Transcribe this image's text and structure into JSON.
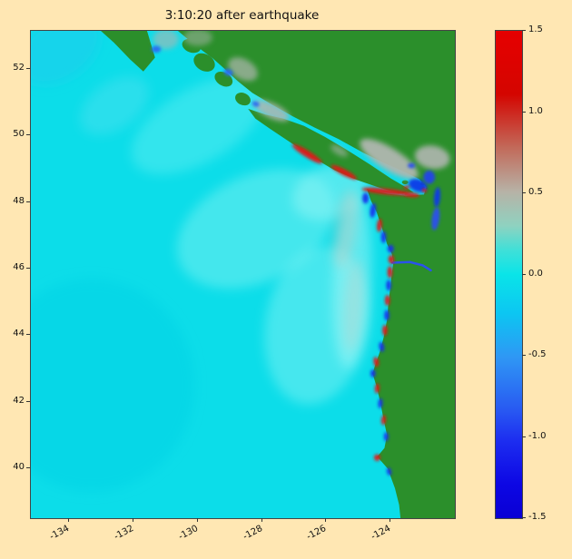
{
  "title": "3:10:20 after earthquake",
  "figure": {
    "background": "#ffe7b3"
  },
  "chart_data": {
    "type": "heatmap",
    "title": "3:10:20 after earthquake",
    "xlabel": "",
    "ylabel": "",
    "xlim": [
      -135.2,
      -122.0
    ],
    "ylim": [
      38.5,
      53.15
    ],
    "grid": false,
    "x_tick_values": [
      -134,
      -132,
      -130,
      -128,
      -126,
      -124
    ],
    "x_tick_labels": [
      "-134",
      "-132",
      "-130",
      "-128",
      "-126",
      "-124"
    ],
    "y_tick_values": [
      40,
      42,
      44,
      46,
      48,
      50,
      52
    ],
    "y_tick_labels": [
      "40",
      "42",
      "44",
      "46",
      "48",
      "50",
      "52"
    ],
    "colors": {
      "red": "#e01616",
      "blue": "#1432ec",
      "land": "#2b8f2b",
      "ocean": "#0cdde9",
      "gray": "#b0b6b0"
    },
    "colorbar": {
      "min": -1.5,
      "max": 1.5,
      "tick_values": [
        1.5,
        1.0,
        0.5,
        0.0,
        -0.5,
        -1.0,
        -1.5
      ],
      "tick_labels": [
        "1.5",
        "1.0",
        "0.5",
        "0.0",
        "-0.5",
        "-1.0",
        "-1.5"
      ],
      "gradient_stops": [
        {
          "pos": 0,
          "color": "#e60000"
        },
        {
          "pos": 13,
          "color": "#d40500"
        },
        {
          "pos": 24,
          "color": "#c26a5a"
        },
        {
          "pos": 33,
          "color": "#b7b2a6"
        },
        {
          "pos": 40,
          "color": "#8fd2c0"
        },
        {
          "pos": 45,
          "color": "#3fe0d8"
        },
        {
          "pos": 50,
          "color": "#0ae4e8"
        },
        {
          "pos": 58,
          "color": "#0cc6f2"
        },
        {
          "pos": 67,
          "color": "#2f97f4"
        },
        {
          "pos": 78,
          "color": "#2858f2"
        },
        {
          "pos": 84,
          "color": "#1d2ef0"
        },
        {
          "pos": 93,
          "color": "#0d07e4"
        },
        {
          "pos": 100,
          "color": "#0a00d4"
        }
      ]
    },
    "wave_patches": [
      {
        "x": -128.2,
        "y": 47.2,
        "rx": 2.6,
        "ry": 1.6,
        "rot": -25,
        "c": "#7df2f2",
        "o": 0.5
      },
      {
        "x": -126.3,
        "y": 44.3,
        "rx": 1.6,
        "ry": 2.4,
        "rot": 10,
        "c": "#8bf4f4",
        "o": 0.45
      },
      {
        "x": -130.0,
        "y": 50.3,
        "rx": 2.3,
        "ry": 1.1,
        "rot": -30,
        "c": "#6eeff2",
        "o": 0.4
      },
      {
        "x": -133.3,
        "y": 42.5,
        "rx": 3.2,
        "ry": 3.2,
        "rot": 0,
        "c": "#00d2e6",
        "o": 0.5
      },
      {
        "x": -125.2,
        "y": 45.6,
        "rx": 0.6,
        "ry": 2.6,
        "rot": 3,
        "c": "#a5f7f7",
        "o": 0.5
      },
      {
        "x": -125.9,
        "y": 48.3,
        "rx": 1.2,
        "ry": 0.8,
        "rot": -20,
        "c": "#97f5f5",
        "o": 0.5
      },
      {
        "x": -134.3,
        "y": 52.6,
        "rx": 1.4,
        "ry": 0.9,
        "rot": -35,
        "c": "#2cc3ef",
        "o": 0.35
      },
      {
        "x": -132.6,
        "y": 50.9,
        "rx": 1.2,
        "ry": 0.7,
        "rot": -35,
        "c": "#57e0f0",
        "o": 0.4
      },
      {
        "x": -125.4,
        "y": 47.2,
        "rx": 0.35,
        "ry": 1.2,
        "rot": 8,
        "c": "#f0b8a8",
        "o": 0.3
      },
      {
        "x": -125.15,
        "y": 44.9,
        "rx": 0.3,
        "ry": 1.4,
        "rot": 4,
        "c": "#f0c0b0",
        "o": 0.25
      }
    ],
    "land_polygons": [
      {
        "name": "haida-gwaii",
        "points": [
          [
            -133.0,
            53.15
          ],
          [
            -131.6,
            53.15
          ],
          [
            -131.35,
            52.35
          ],
          [
            -131.7,
            51.95
          ],
          [
            -132.1,
            52.3
          ],
          [
            -132.6,
            52.8
          ]
        ]
      },
      {
        "name": "mainland",
        "points": [
          [
            -130.6,
            53.15
          ],
          [
            -130.1,
            52.75
          ],
          [
            -129.55,
            52.35
          ],
          [
            -129.2,
            52.05
          ],
          [
            -128.75,
            51.65
          ],
          [
            -128.3,
            51.3
          ],
          [
            -127.7,
            50.95
          ],
          [
            -127.05,
            50.6
          ],
          [
            -126.35,
            50.25
          ],
          [
            -125.6,
            49.9
          ],
          [
            -124.85,
            49.5
          ],
          [
            -124.1,
            49.15
          ],
          [
            -123.5,
            48.9
          ],
          [
            -123.1,
            48.7
          ],
          [
            -122.88,
            48.45
          ],
          [
            -122.95,
            48.22
          ],
          [
            -123.5,
            48.18
          ],
          [
            -124.1,
            48.24
          ],
          [
            -124.72,
            48.38
          ],
          [
            -124.6,
            48.05
          ],
          [
            -124.42,
            47.7
          ],
          [
            -124.3,
            47.35
          ],
          [
            -124.18,
            47.0
          ],
          [
            -124.1,
            46.75
          ],
          [
            -123.95,
            46.45
          ],
          [
            -123.9,
            46.18
          ],
          [
            -123.95,
            45.85
          ],
          [
            -124.0,
            45.4
          ],
          [
            -124.06,
            44.9
          ],
          [
            -124.1,
            44.45
          ],
          [
            -124.2,
            43.95
          ],
          [
            -124.32,
            43.5
          ],
          [
            -124.45,
            43.15
          ],
          [
            -124.55,
            42.85
          ],
          [
            -124.42,
            42.45
          ],
          [
            -124.3,
            41.95
          ],
          [
            -124.2,
            41.45
          ],
          [
            -124.1,
            41.0
          ],
          [
            -124.18,
            40.6
          ],
          [
            -124.4,
            40.35
          ],
          [
            -124.08,
            40.0
          ],
          [
            -123.85,
            39.4
          ],
          [
            -123.72,
            38.9
          ],
          [
            -123.68,
            38.5
          ],
          [
            -122.0,
            38.5
          ],
          [
            -122.0,
            53.15
          ]
        ]
      },
      {
        "name": "vancouver-island",
        "points": [
          [
            -128.4,
            50.78
          ],
          [
            -127.9,
            50.62
          ],
          [
            -127.35,
            50.5
          ],
          [
            -126.7,
            50.28
          ],
          [
            -126.05,
            49.95
          ],
          [
            -125.35,
            49.55
          ],
          [
            -124.65,
            49.12
          ],
          [
            -124.0,
            48.7
          ],
          [
            -123.5,
            48.42
          ],
          [
            -123.32,
            48.3
          ],
          [
            -123.75,
            48.28
          ],
          [
            -124.35,
            48.45
          ],
          [
            -125.05,
            48.68
          ],
          [
            -125.75,
            48.98
          ],
          [
            -126.45,
            49.38
          ],
          [
            -127.1,
            49.8
          ],
          [
            -127.75,
            50.22
          ],
          [
            -128.2,
            50.52
          ]
        ]
      }
    ],
    "islands": [
      {
        "x": -129.8,
        "y": 52.2,
        "rx": 0.35,
        "ry": 0.25,
        "rot": 30
      },
      {
        "x": -129.2,
        "y": 51.7,
        "rx": 0.3,
        "ry": 0.2,
        "rot": 30
      },
      {
        "x": -130.2,
        "y": 52.7,
        "rx": 0.3,
        "ry": 0.2,
        "rot": 20
      },
      {
        "x": -128.6,
        "y": 51.1,
        "rx": 0.25,
        "ry": 0.18,
        "rot": 25
      },
      {
        "x": -123.0,
        "y": 48.55,
        "rx": 0.08,
        "ry": 0.05,
        "rot": 0
      },
      {
        "x": -123.55,
        "y": 48.6,
        "rx": 0.1,
        "ry": 0.06,
        "rot": 0
      }
    ],
    "gray_patches": [
      {
        "x": -124.05,
        "y": 49.3,
        "rx": 1.05,
        "ry": 0.33,
        "rot": 32,
        "o": 0.95
      },
      {
        "x": -122.7,
        "y": 49.35,
        "rx": 0.55,
        "ry": 0.35,
        "rot": 10,
        "o": 0.9
      },
      {
        "x": -127.7,
        "y": 50.75,
        "rx": 0.6,
        "ry": 0.22,
        "rot": 25,
        "o": 0.85
      },
      {
        "x": -128.6,
        "y": 52.0,
        "rx": 0.5,
        "ry": 0.3,
        "rot": 30,
        "o": 0.7
      },
      {
        "x": -131.0,
        "y": 52.9,
        "rx": 0.4,
        "ry": 0.3,
        "rot": 0,
        "o": 0.6
      },
      {
        "x": -130.0,
        "y": 52.95,
        "rx": 0.45,
        "ry": 0.25,
        "rot": 0,
        "o": 0.5
      },
      {
        "x": -125.6,
        "y": 49.55,
        "rx": 0.3,
        "ry": 0.12,
        "rot": 30,
        "o": 0.6
      }
    ],
    "inland_water": [
      {
        "x": -123.15,
        "y": 48.5,
        "rx": 0.3,
        "ry": 0.18,
        "rot": 20,
        "c": "#1238e8"
      },
      {
        "x": -122.8,
        "y": 48.75,
        "rx": 0.18,
        "ry": 0.2,
        "rot": 0,
        "c": "#2343ea"
      },
      {
        "x": -122.55,
        "y": 48.15,
        "rx": 0.1,
        "ry": 0.3,
        "rot": 5,
        "c": "#1238e8"
      },
      {
        "x": -122.6,
        "y": 47.5,
        "rx": 0.12,
        "ry": 0.35,
        "rot": 8,
        "c": "#2a50ee"
      },
      {
        "x": -123.35,
        "y": 49.1,
        "rx": 0.12,
        "ry": 0.08,
        "rot": 0,
        "c": "#2a50ee"
      },
      {
        "x": -129.05,
        "y": 51.9,
        "rx": 0.15,
        "ry": 0.1,
        "rot": 20,
        "c": "#2a6af0"
      },
      {
        "x": -131.3,
        "y": 52.6,
        "rx": 0.15,
        "ry": 0.1,
        "rot": 0,
        "c": "#2a6af0"
      },
      {
        "x": -128.2,
        "y": 50.95,
        "rx": 0.12,
        "ry": 0.08,
        "rot": 20,
        "c": "#2a6af0"
      }
    ],
    "river": {
      "pts": [
        [
          -123.95,
          46.18
        ],
        [
          -123.4,
          46.2
        ],
        [
          -123.0,
          46.1
        ],
        [
          -122.75,
          45.95
        ]
      ],
      "c": "#2b52ec",
      "w": 2.5
    },
    "coastal_markers": [
      {
        "x": -126.6,
        "y": 49.45,
        "rx": 0.55,
        "ry": 0.1,
        "rot": 32,
        "c": "red"
      },
      {
        "x": -125.45,
        "y": 48.9,
        "rx": 0.45,
        "ry": 0.09,
        "rot": 28,
        "c": "red"
      },
      {
        "x": -124.15,
        "y": 48.32,
        "rx": 0.75,
        "ry": 0.09,
        "rot": 6,
        "c": "red"
      },
      {
        "x": -123.35,
        "y": 48.22,
        "rx": 0.25,
        "ry": 0.07,
        "rot": 5,
        "c": "red"
      },
      {
        "x": -122.95,
        "y": 48.35,
        "rx": 0.08,
        "ry": 0.06,
        "rot": 0,
        "c": "red"
      },
      {
        "x": -123.5,
        "y": 48.45,
        "rx": 0.1,
        "ry": 0.05,
        "rot": 0,
        "c": "red"
      },
      {
        "x": -124.78,
        "y": 48.12,
        "rx": 0.1,
        "ry": 0.16,
        "rot": 0,
        "c": "blue"
      },
      {
        "x": -124.55,
        "y": 47.75,
        "rx": 0.09,
        "ry": 0.22,
        "rot": 8,
        "c": "blue"
      },
      {
        "x": -124.35,
        "y": 47.3,
        "rx": 0.08,
        "ry": 0.2,
        "rot": 5,
        "c": "red"
      },
      {
        "x": -124.22,
        "y": 46.95,
        "rx": 0.08,
        "ry": 0.18,
        "rot": 0,
        "c": "blue"
      },
      {
        "x": -124.0,
        "y": 46.6,
        "rx": 0.1,
        "ry": 0.12,
        "rot": 0,
        "c": "blue"
      },
      {
        "x": -123.98,
        "y": 46.28,
        "rx": 0.09,
        "ry": 0.13,
        "rot": 0,
        "c": "red"
      },
      {
        "x": -124.02,
        "y": 45.9,
        "rx": 0.08,
        "ry": 0.18,
        "rot": 0,
        "c": "red"
      },
      {
        "x": -124.06,
        "y": 45.5,
        "rx": 0.08,
        "ry": 0.16,
        "rot": 0,
        "c": "blue"
      },
      {
        "x": -124.1,
        "y": 45.05,
        "rx": 0.08,
        "ry": 0.16,
        "rot": 0,
        "c": "red"
      },
      {
        "x": -124.12,
        "y": 44.6,
        "rx": 0.08,
        "ry": 0.16,
        "rot": 0,
        "c": "blue"
      },
      {
        "x": -124.18,
        "y": 44.15,
        "rx": 0.08,
        "ry": 0.16,
        "rot": 0,
        "c": "red"
      },
      {
        "x": -124.28,
        "y": 43.65,
        "rx": 0.08,
        "ry": 0.15,
        "rot": -10,
        "c": "blue"
      },
      {
        "x": -124.45,
        "y": 43.2,
        "rx": 0.08,
        "ry": 0.15,
        "rot": -10,
        "c": "red"
      },
      {
        "x": -124.55,
        "y": 42.85,
        "rx": 0.08,
        "ry": 0.12,
        "rot": 0,
        "c": "blue"
      },
      {
        "x": -124.42,
        "y": 42.4,
        "rx": 0.07,
        "ry": 0.15,
        "rot": 5,
        "c": "red"
      },
      {
        "x": -124.32,
        "y": 41.95,
        "rx": 0.07,
        "ry": 0.15,
        "rot": 5,
        "c": "blue"
      },
      {
        "x": -124.22,
        "y": 41.45,
        "rx": 0.07,
        "ry": 0.15,
        "rot": 5,
        "c": "red"
      },
      {
        "x": -124.14,
        "y": 40.95,
        "rx": 0.07,
        "ry": 0.14,
        "rot": 0,
        "c": "blue"
      },
      {
        "x": -124.42,
        "y": 40.32,
        "rx": 0.1,
        "ry": 0.1,
        "rot": 0,
        "c": "red"
      },
      {
        "x": -124.05,
        "y": 39.9,
        "rx": 0.07,
        "ry": 0.12,
        "rot": -15,
        "c": "blue"
      }
    ]
  }
}
